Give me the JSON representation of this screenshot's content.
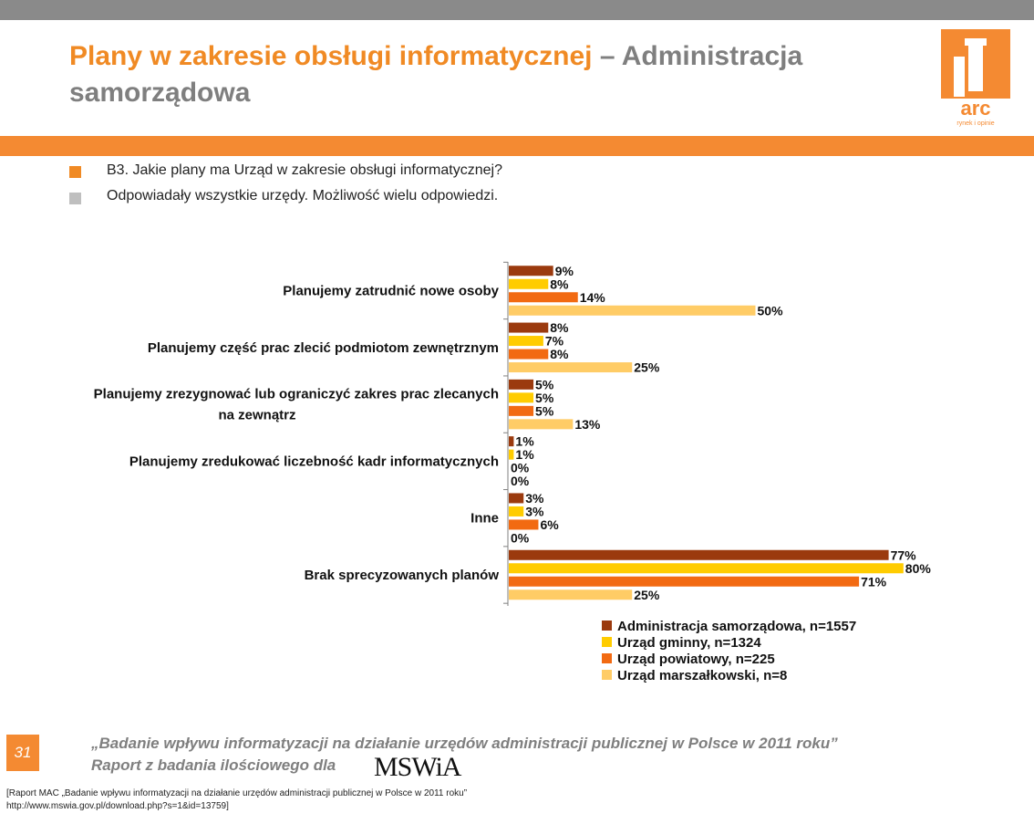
{
  "header": {
    "title_accent": "Plany w zakresie obsługi informatycznej",
    "title_rest": " – Administracja samorządowa",
    "logo_text": "arc",
    "logo_tagline": "rynek i opinie"
  },
  "question": {
    "line1": "B3. Jakie  plany ma Urząd w zakresie obsługi informatycznej?",
    "line2": "Odpowiadały wszystkie urzędy. Możliwość wielu odpowiedzi.",
    "bullet1_color": "#f08a24",
    "bullet2_color": "#bfbfbf"
  },
  "chart_data": {
    "type": "bar",
    "orientation": "horizontal",
    "categories": [
      [
        "Planujemy zatrudnić nowe osoby"
      ],
      [
        "Planujemy część prac zlecić podmiotom zewnętrznym"
      ],
      [
        "Planujemy zrezygnować lub ograniczyć zakres prac zlecanych",
        "na zewnątrz"
      ],
      [
        "Planujemy zredukować liczebność kadr informatycznych"
      ],
      [
        "Inne"
      ],
      [
        "Brak sprecyzowanych planów"
      ]
    ],
    "series": [
      {
        "name": "Administracja samorządowa, n=1557",
        "color": "#9b3a0e",
        "values": [
          9,
          8,
          5,
          1,
          3,
          77
        ]
      },
      {
        "name": "Urząd gminny, n=1324",
        "color": "#ffcc00",
        "values": [
          8,
          7,
          5,
          1,
          3,
          80
        ]
      },
      {
        "name": "Urząd powiatowy, n=225",
        "color": "#f26a12",
        "values": [
          14,
          8,
          5,
          0,
          6,
          71
        ]
      },
      {
        "name": "Urząd marszałkowski, n=8",
        "color": "#ffcc66",
        "values": [
          50,
          25,
          13,
          0,
          0,
          25
        ]
      }
    ],
    "value_suffix": "%",
    "xlim": [
      0,
      100
    ],
    "grid": false,
    "legend_position": "bottom-right"
  },
  "footer": {
    "page_number": "31",
    "study_title": "„Badanie wpływu informatyzacji na działanie urzędów administracji publicznej w Polsce w 2011 roku”",
    "report_line": "Raport z badania ilościowego dla",
    "mswia_logo": "MSWiA",
    "source_line1": "[Raport MAC „Badanie wpływu informatyzacji na działanie urzędów administracji publicznej w Polsce w 2011 roku”",
    "source_line2": "http://www.mswia.gov.pl/download.php?s=1&id=13759]"
  }
}
